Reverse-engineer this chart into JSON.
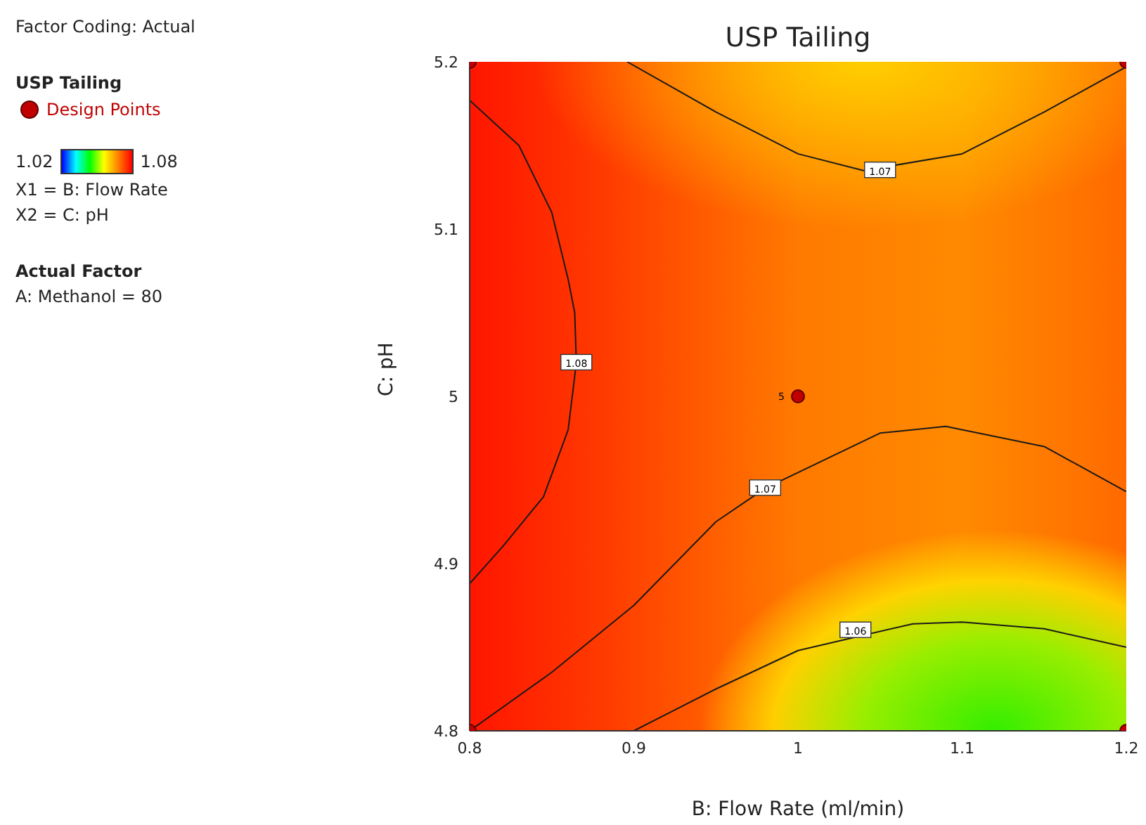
{
  "chart_data": {
    "type": "line",
    "title": "USP Tailing",
    "xlabel": "B: Flow Rate (ml/min)",
    "ylabel": "C: pH",
    "legend_title": "USP Tailing",
    "legend": "left",
    "xlim": [
      0.8,
      1.2
    ],
    "ylim": [
      4.8,
      5.2
    ],
    "xticks": [
      0.8,
      0.9,
      1,
      1.1,
      1.2
    ],
    "yticks": [
      4.8,
      4.9,
      5,
      5.1,
      5.2
    ],
    "grid": false,
    "line_style": "solid",
    "marker": "none",
    "series": [
      {
        "color": "#1a1a1a",
        "x": [
          0.8,
          0.83,
          0.85,
          0.86,
          0.864,
          0.865,
          0.86,
          0.845,
          0.82,
          0.8
        ],
        "values": [
          5.177,
          5.15,
          5.11,
          5.07,
          5.05,
          5.02,
          4.98,
          4.94,
          4.91,
          4.888
        ]
      },
      {
        "color": "#1a1a1a",
        "x": [
          0.896,
          0.95,
          1.0,
          1.04,
          1.1,
          1.15,
          1.2
        ],
        "values": [
          5.2,
          5.17,
          5.145,
          5.135,
          5.145,
          5.17,
          5.197
        ]
      },
      {
        "color": "#1a1a1a",
        "x": [
          0.8,
          0.85,
          0.9,
          0.95,
          0.98,
          1.05,
          1.09,
          1.15,
          1.2
        ],
        "values": [
          4.8,
          4.835,
          4.875,
          4.925,
          4.945,
          4.978,
          4.982,
          4.97,
          4.943
        ]
      },
      {
        "color": "#1a1a1a",
        "x": [
          0.9,
          0.95,
          1.0,
          1.07,
          1.1,
          1.15,
          1.2
        ],
        "values": [
          4.8,
          4.825,
          4.848,
          4.864,
          4.865,
          4.861,
          4.85
        ]
      },
      {
        "type": "scatter",
        "name": "Design Points",
        "color": "#c00000",
        "marker": "circle",
        "x": [
          0.8,
          1.2,
          0.8,
          1.2,
          1.0
        ],
        "values": [
          5.2,
          5.2,
          4.8,
          4.8,
          5.0
        ],
        "value_labels": [
          null,
          null,
          null,
          null,
          "5"
        ]
      }
    ],
    "annotations": [
      "Factor Coding: Actual",
      "1.02",
      "1.08",
      "X1 = B: Flow Rate",
      "X2 = C: pH",
      "Actual Factor",
      "A: Methanol = 80",
      {
        "text": "1.08",
        "x": 0.865,
        "y": 5.02
      },
      {
        "text": "1.07",
        "x": 1.05,
        "y": 5.135
      },
      {
        "text": "1.07",
        "x": 0.98,
        "y": 4.945
      },
      {
        "text": "1.06",
        "x": 1.035,
        "y": 4.86
      }
    ]
  }
}
